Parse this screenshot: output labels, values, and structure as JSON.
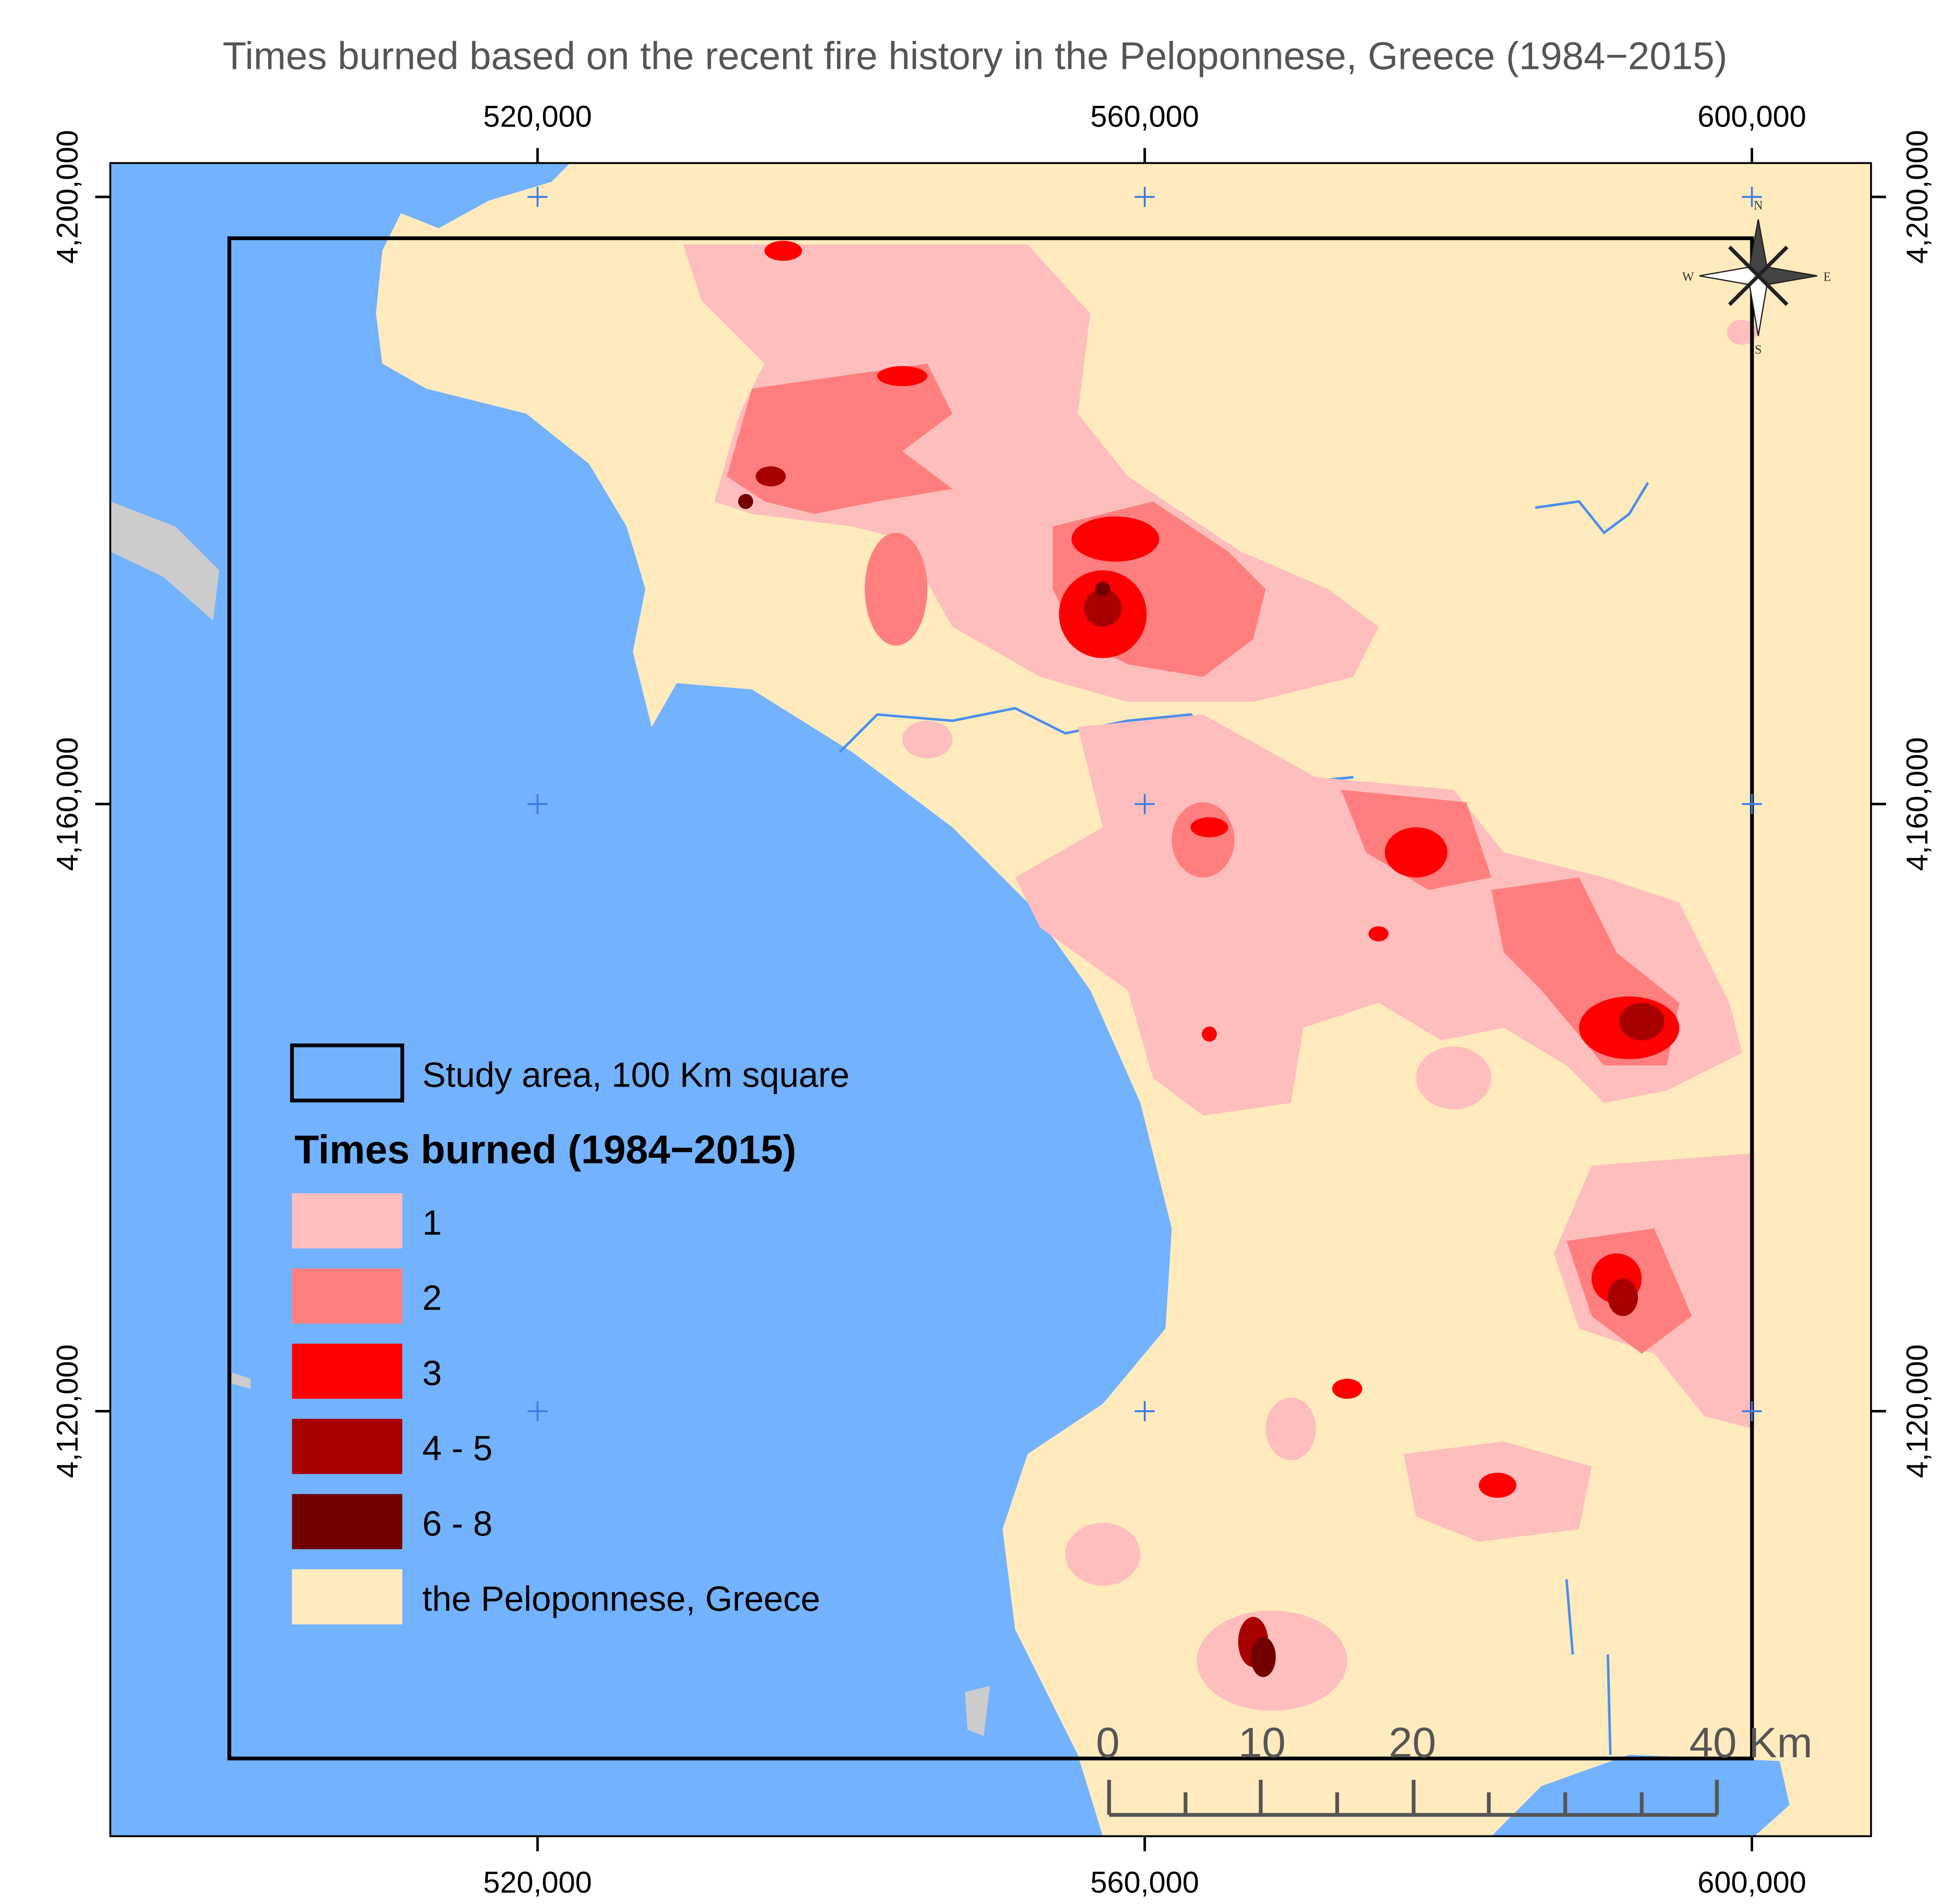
{
  "title": "Times burned based on the recent fire history in the Peloponnese, Greece (1984−2015)",
  "xlim": [
    491850,
    607850
  ],
  "ylim": [
    4092000,
    4202230
  ],
  "x_ticks": [
    {
      "value": 520000,
      "label": "520,000"
    },
    {
      "value": 560000,
      "label": "560,000"
    },
    {
      "value": 600000,
      "label": "600,000"
    }
  ],
  "y_ticks": [
    {
      "value": 4200000,
      "label": "4,200,000"
    },
    {
      "value": 4160000,
      "label": "4,160,000"
    },
    {
      "value": 4120000,
      "label": "4,120,000"
    }
  ],
  "sea_color": "#73b2ff",
  "legend": {
    "study_area": "Study area, 100 Km square",
    "title": "Times burned (1984−2015)",
    "items": [
      {
        "label": "1",
        "color": "#ffbebe"
      },
      {
        "label": "2",
        "color": "#ff7f7f"
      },
      {
        "label": "3",
        "color": "#ff0000"
      },
      {
        "label": "4 - 5",
        "color": "#a80000"
      },
      {
        "label": "6 - 8",
        "color": "#730000"
      },
      {
        "label": "the Peloponnese, Greece",
        "color": "#ffebbe"
      }
    ]
  },
  "scale_bar": [
    "0",
    "10",
    "20",
    "40 Km"
  ],
  "compass": {
    "n": "N",
    "e": "E",
    "s": "S",
    "w": "W"
  }
}
